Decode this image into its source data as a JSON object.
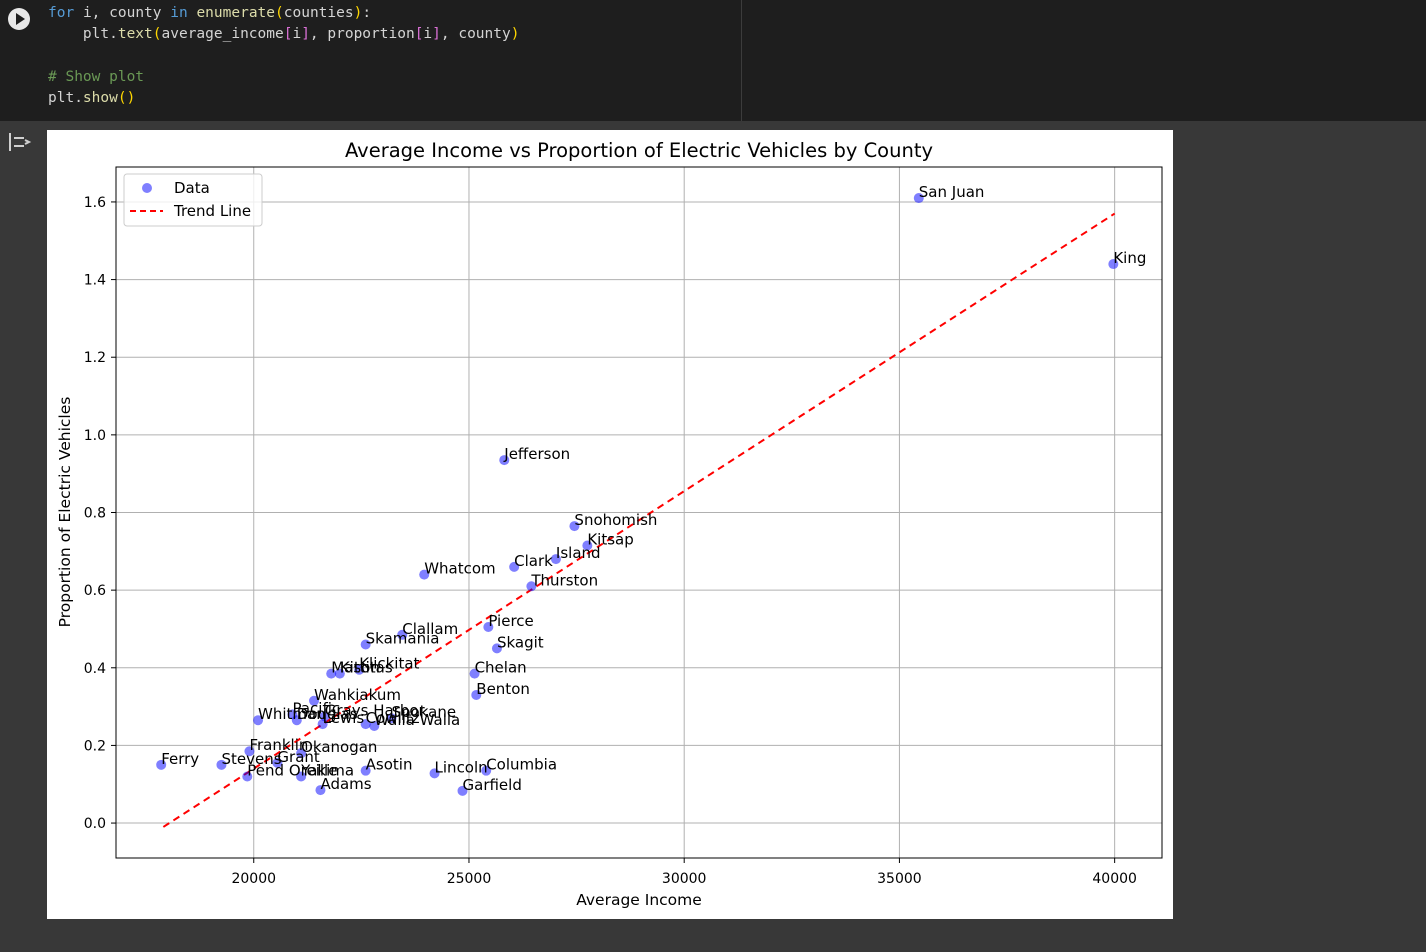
{
  "code": {
    "lines": [
      "for i, county in enumerate(counties):",
      "    plt.text(average_income[i], proportion[i], county)",
      "",
      "# Show plot",
      "plt.show()"
    ]
  },
  "chart_data": {
    "type": "scatter",
    "title": "Average Income vs Proportion of Electric Vehicles by County",
    "xlabel": "Average Income",
    "ylabel": "Proportion of Electric Vehicles",
    "xlim": [
      16800,
      41100
    ],
    "ylim": [
      -0.09,
      1.69
    ],
    "xticks": [
      20000,
      25000,
      30000,
      35000,
      40000
    ],
    "yticks": [
      0.0,
      0.2,
      0.4,
      0.6,
      0.8,
      1.0,
      1.2,
      1.4,
      1.6
    ],
    "grid": true,
    "legend": {
      "position": "upper left",
      "entries": [
        {
          "label": "Data",
          "kind": "marker",
          "color": "#0000ff"
        },
        {
          "label": "Trend Line",
          "kind": "dashed-line",
          "color": "#ff0000"
        }
      ]
    },
    "trend_line": {
      "x": [
        17900,
        40000
      ],
      "y": [
        -0.01,
        1.57
      ],
      "color": "#ff0000",
      "style": "dashed"
    },
    "points": [
      {
        "label": "San Juan",
        "x": 35450,
        "y": 1.61
      },
      {
        "label": "King",
        "x": 39970,
        "y": 1.44
      },
      {
        "label": "Jefferson",
        "x": 25820,
        "y": 0.935
      },
      {
        "label": "Snohomish",
        "x": 27450,
        "y": 0.765
      },
      {
        "label": "Kitsap",
        "x": 27750,
        "y": 0.715
      },
      {
        "label": "Island",
        "x": 27020,
        "y": 0.68
      },
      {
        "label": "Clark",
        "x": 26050,
        "y": 0.66
      },
      {
        "label": "Whatcom",
        "x": 23960,
        "y": 0.64
      },
      {
        "label": "Thurston",
        "x": 26450,
        "y": 0.61
      },
      {
        "label": "Clallam",
        "x": 23450,
        "y": 0.485
      },
      {
        "label": "Skamania",
        "x": 22600,
        "y": 0.46
      },
      {
        "label": "Pierce",
        "x": 25450,
        "y": 0.505
      },
      {
        "label": "Skagit",
        "x": 25650,
        "y": 0.45
      },
      {
        "label": "Chelan",
        "x": 25130,
        "y": 0.385
      },
      {
        "label": "Benton",
        "x": 25170,
        "y": 0.33
      },
      {
        "label": "Klickitat",
        "x": 22450,
        "y": 0.395
      },
      {
        "label": "Mason",
        "x": 21800,
        "y": 0.385
      },
      {
        "label": "Kittitas",
        "x": 22000,
        "y": 0.385
      },
      {
        "label": "Wahkiakum",
        "x": 21400,
        "y": 0.315
      },
      {
        "label": "Whitman",
        "x": 20100,
        "y": 0.265
      },
      {
        "label": "Pacific",
        "x": 20900,
        "y": 0.28
      },
      {
        "label": "Douglas",
        "x": 21000,
        "y": 0.265
      },
      {
        "label": "Grays Harbor",
        "x": 21650,
        "y": 0.275
      },
      {
        "label": "Lewis",
        "x": 21600,
        "y": 0.255
      },
      {
        "label": "Cowlitz",
        "x": 22600,
        "y": 0.255
      },
      {
        "label": "Walla Walla",
        "x": 22800,
        "y": 0.25
      },
      {
        "label": "Spokane",
        "x": 23200,
        "y": 0.27
      },
      {
        "label": "Franklin",
        "x": 19900,
        "y": 0.185
      },
      {
        "label": "Okanogan",
        "x": 21100,
        "y": 0.18
      },
      {
        "label": "Ferry",
        "x": 17850,
        "y": 0.15
      },
      {
        "label": "Stevens",
        "x": 19250,
        "y": 0.15
      },
      {
        "label": "Grant",
        "x": 20550,
        "y": 0.155
      },
      {
        "label": "Pend Oreille",
        "x": 19850,
        "y": 0.12
      },
      {
        "label": "Yakima",
        "x": 21100,
        "y": 0.12
      },
      {
        "label": "Adams",
        "x": 21550,
        "y": 0.085
      },
      {
        "label": "Asotin",
        "x": 22600,
        "y": 0.135
      },
      {
        "label": "Lincoln",
        "x": 24200,
        "y": 0.128
      },
      {
        "label": "Columbia",
        "x": 25400,
        "y": 0.135
      },
      {
        "label": "Garfield",
        "x": 24850,
        "y": 0.083
      }
    ],
    "marker_color": "#0000ff",
    "marker_alpha": 0.5
  }
}
